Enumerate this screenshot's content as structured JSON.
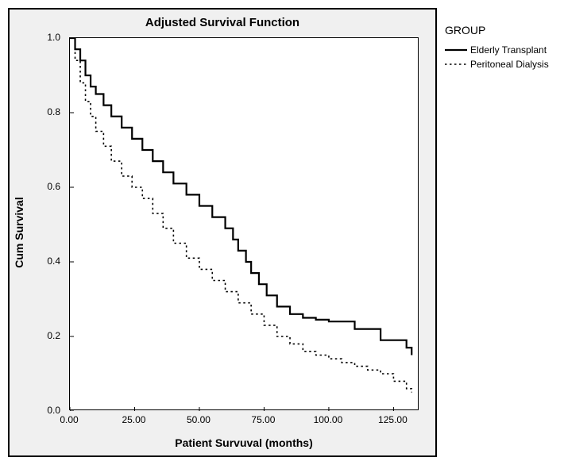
{
  "chart": {
    "type": "survival-step",
    "title": "Adjusted Survival Function",
    "xlabel": "Patient Survuval (months)",
    "ylabel": "Cum Survival",
    "title_fontsize": 15,
    "label_fontsize": 14,
    "tick_fontsize": 12,
    "background_color": "#f0f0f0",
    "plot_background": "#ffffff",
    "border_color": "#000000",
    "xlim": [
      0,
      135
    ],
    "ylim": [
      0,
      1.0
    ],
    "xticks": [
      0,
      25,
      50,
      75,
      100,
      125
    ],
    "xtick_labels": [
      "0.00",
      "25.00",
      "50.00",
      "75.00",
      "100.00",
      "125.00"
    ],
    "yticks": [
      0,
      0.2,
      0.4,
      0.6,
      0.8,
      1.0
    ],
    "ytick_labels": [
      "0.0",
      "0.2",
      "0.4",
      "0.6",
      "0.8",
      "1.0"
    ],
    "legend_title": "GROUP",
    "series": [
      {
        "name": "Elderly Transplant",
        "color": "#000000",
        "line_width": 2.2,
        "dash": "solid",
        "x": [
          0,
          2,
          4,
          6,
          8,
          10,
          13,
          16,
          20,
          24,
          28,
          32,
          36,
          40,
          45,
          50,
          55,
          60,
          63,
          65,
          68,
          70,
          73,
          76,
          80,
          85,
          90,
          95,
          100,
          110,
          120,
          130,
          132
        ],
        "y": [
          1.0,
          0.97,
          0.94,
          0.9,
          0.87,
          0.85,
          0.82,
          0.79,
          0.76,
          0.73,
          0.7,
          0.67,
          0.64,
          0.61,
          0.58,
          0.55,
          0.52,
          0.49,
          0.46,
          0.43,
          0.4,
          0.37,
          0.34,
          0.31,
          0.28,
          0.26,
          0.25,
          0.245,
          0.24,
          0.22,
          0.19,
          0.17,
          0.15
        ]
      },
      {
        "name": "Peritoneal Dialysis",
        "color": "#000000",
        "line_width": 1.6,
        "dash": "dotted",
        "x": [
          0,
          2,
          4,
          6,
          8,
          10,
          13,
          16,
          20,
          24,
          28,
          32,
          36,
          40,
          45,
          50,
          55,
          60,
          65,
          70,
          75,
          80,
          85,
          90,
          95,
          100,
          105,
          110,
          115,
          120,
          125,
          130,
          132
        ],
        "y": [
          1.0,
          0.94,
          0.88,
          0.83,
          0.79,
          0.75,
          0.71,
          0.67,
          0.63,
          0.6,
          0.57,
          0.53,
          0.49,
          0.45,
          0.41,
          0.38,
          0.35,
          0.32,
          0.29,
          0.26,
          0.23,
          0.2,
          0.18,
          0.16,
          0.15,
          0.14,
          0.13,
          0.12,
          0.11,
          0.1,
          0.08,
          0.06,
          0.05
        ]
      }
    ]
  }
}
